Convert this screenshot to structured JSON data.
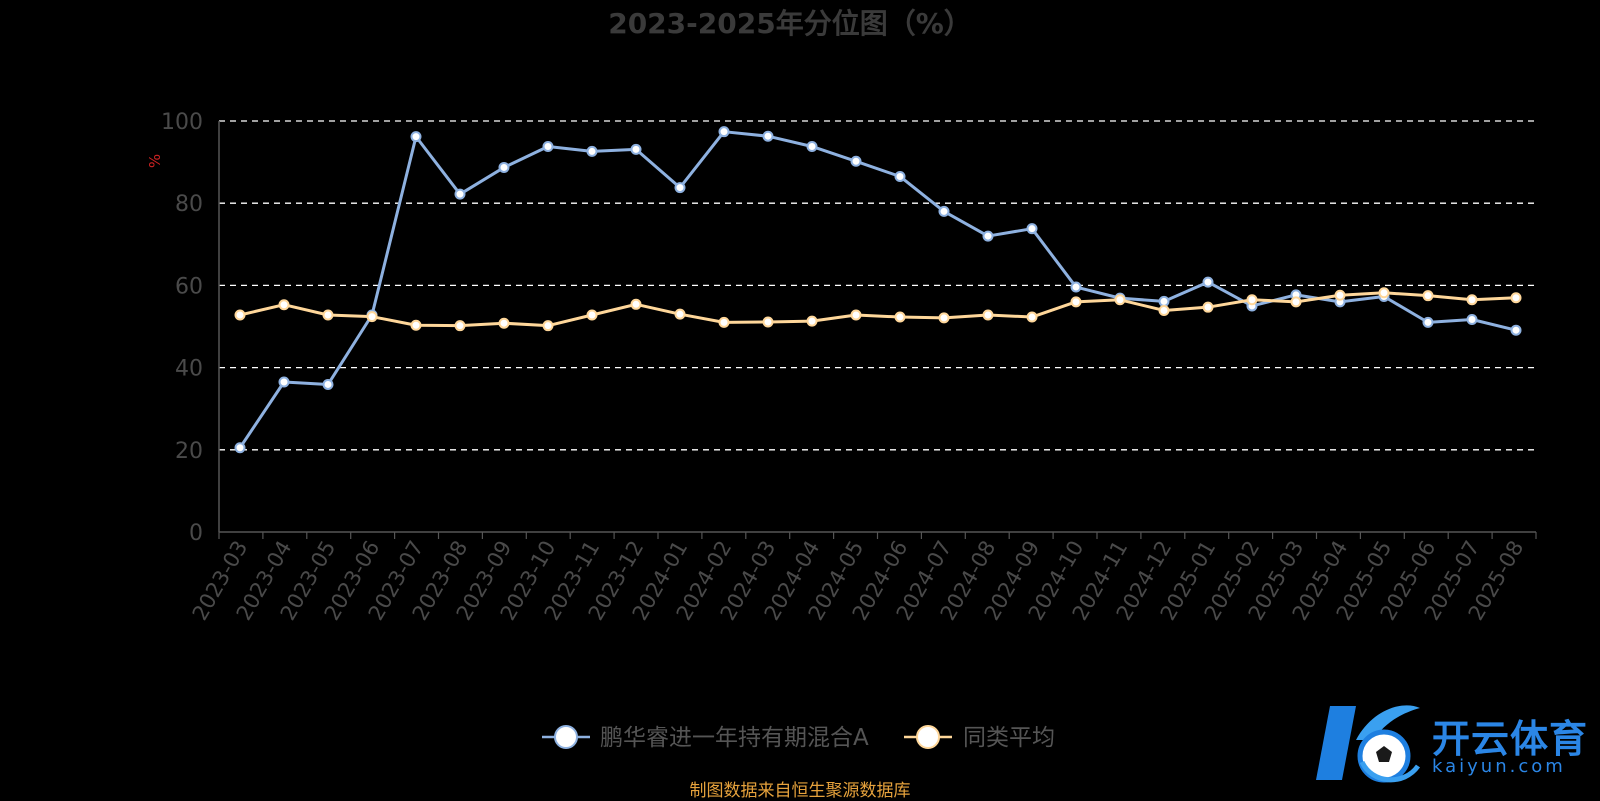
{
  "chart_data": {
    "type": "line",
    "title": "2023-2025年分位图（%）",
    "ylabel": "%",
    "xlabel": "",
    "ylim": [
      0,
      100
    ],
    "yticks": [
      0,
      20,
      40,
      60,
      80,
      100
    ],
    "grid": true,
    "legend_position": "bottom",
    "categories": [
      "2023-03",
      "2023-04",
      "2023-05",
      "2023-06",
      "2023-07",
      "2023-08",
      "2023-09",
      "2023-10",
      "2023-11",
      "2023-12",
      "2024-01",
      "2024-02",
      "2024-03",
      "2024-04",
      "2024-05",
      "2024-06",
      "2024-07",
      "2024-08",
      "2024-09",
      "2024-10",
      "2024-11",
      "2024-12",
      "2025-01",
      "2025-02",
      "2025-03",
      "2025-04",
      "2025-05",
      "2025-06",
      "2025-07",
      "2025-08"
    ],
    "series": [
      {
        "name": "鹏华睿进一年持有期混合A",
        "color": "#8eb1e0",
        "values": [
          20.5,
          36.5,
          35.9,
          52.8,
          96.2,
          82.2,
          88.7,
          93.8,
          92.6,
          93.1,
          83.8,
          97.4,
          96.3,
          93.8,
          90.2,
          86.5,
          78.0,
          72.0,
          73.8,
          59.6,
          56.9,
          56.1,
          60.8,
          55.0,
          57.7,
          56.0,
          57.3,
          51.0,
          51.7,
          49.1
        ]
      },
      {
        "name": "同类平均",
        "color": "#ffd79a",
        "values": [
          52.8,
          55.3,
          52.8,
          52.4,
          50.3,
          50.2,
          50.8,
          50.2,
          52.8,
          55.4,
          53.0,
          51.0,
          51.1,
          51.3,
          52.8,
          52.3,
          52.1,
          52.8,
          52.3,
          56.0,
          56.5,
          53.9,
          54.7,
          56.5,
          56.0,
          57.6,
          58.2,
          57.5,
          56.5,
          57.0
        ]
      }
    ]
  },
  "colors": {
    "background": "#000000",
    "title": "#3a3a3a",
    "axis_text": "#4a4a4a",
    "axis_line": "#555555",
    "grid": "#ffffff",
    "ylabel": "#cc2222",
    "legend_text": "#555555",
    "source_note": "#e6a23c"
  },
  "source_note": "制图数据来自恒生聚源数据库",
  "watermark": {
    "icon": "k-soccer-ball-logo",
    "text_cn": "开云体育",
    "text_en": "kaiyun.com"
  }
}
